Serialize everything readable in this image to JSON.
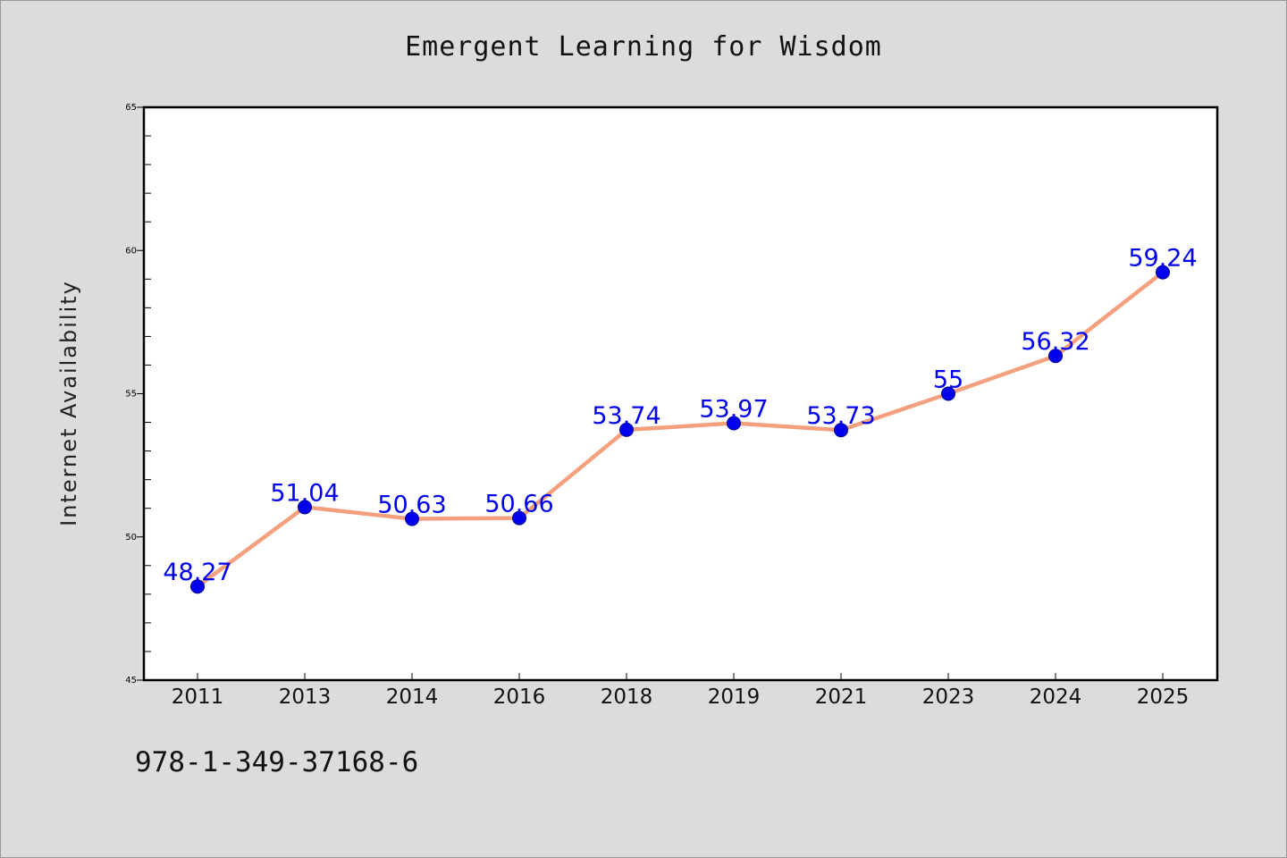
{
  "chart_data": {
    "type": "line",
    "title": "Emergent Learning for Wisdom",
    "xlabel": "",
    "ylabel": "Internet Availability",
    "categories": [
      "2011",
      "2013",
      "2014",
      "2016",
      "2018",
      "2019",
      "2021",
      "2023",
      "2024",
      "2025"
    ],
    "series": [
      {
        "values": [
          48.27,
          51.04,
          50.63,
          50.66,
          53.74,
          53.97,
          53.73,
          55,
          56.32,
          59.24
        ],
        "data_labels": [
          "48.27",
          "51.04",
          "50.63",
          "50.66",
          "53.74",
          "53.97",
          "53.73",
          "55",
          "56.32",
          "59.24"
        ],
        "line_color": "#f4a07e",
        "marker_color": "#0000ee"
      }
    ],
    "ylim": [
      45,
      65
    ],
    "yticks": [
      45,
      50,
      55,
      60,
      65
    ],
    "ytick_labels": [
      "45",
      "50",
      "55",
      "60",
      "65"
    ],
    "grid": false,
    "legend": "none",
    "colors": {
      "background": "#dcdcdc",
      "plot_area": "#ffffff",
      "label_text": "#0000ee"
    }
  },
  "footnote": "978-1-349-37168-6"
}
